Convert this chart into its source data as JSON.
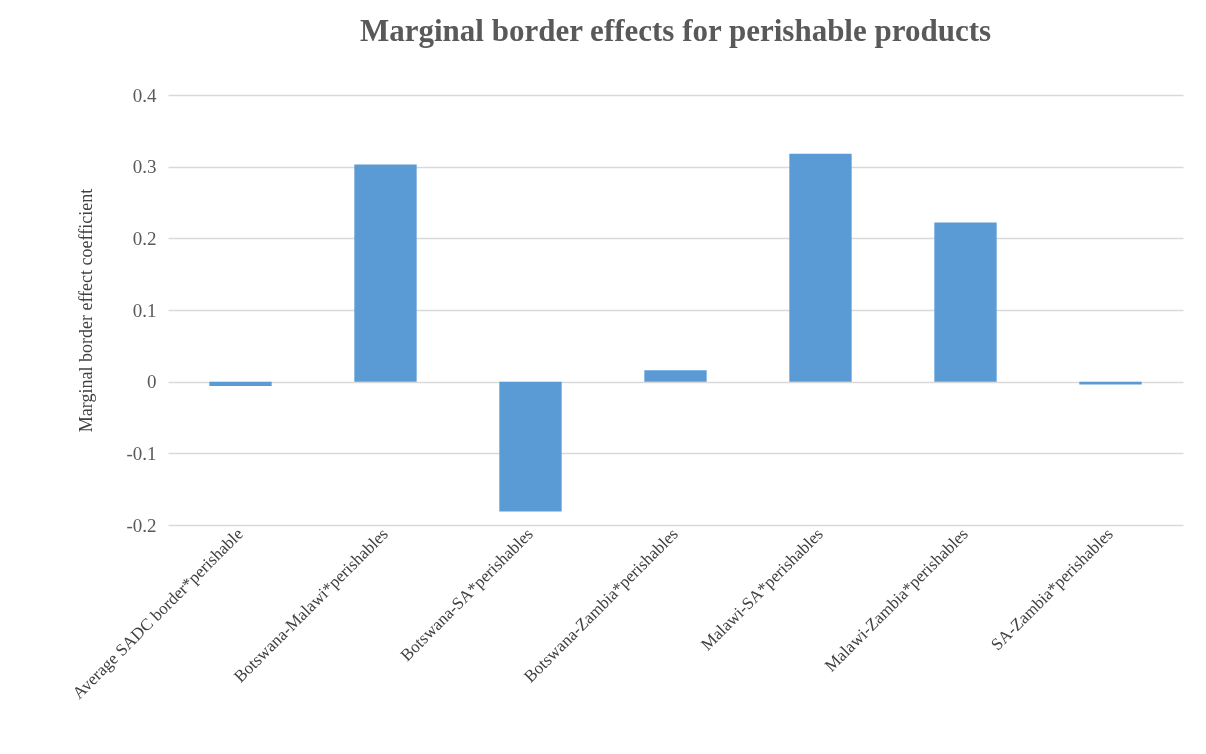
{
  "chart_data": {
    "type": "bar",
    "title": "Marginal border effects for perishable products",
    "ylabel": "Marginal border effect coefficient",
    "categories": [
      "Average SADC border*perishable",
      "Botswana-Malawi*perishables",
      "Botswana-SA*perishables",
      "Botswana-Zambia*perishables",
      "Malawi-SA*perishables",
      "Malawi-Zambia*perishables",
      "SA-Zambia*perishables"
    ],
    "values": [
      -0.006,
      0.303,
      -0.181,
      0.016,
      0.318,
      0.222,
      -0.004
    ],
    "color": "#5b9bd5",
    "ylim": [
      -0.2,
      0.4
    ],
    "yticks": [
      -0.2,
      -0.1,
      0,
      0.1,
      0.2,
      0.3,
      0.4
    ],
    "grid": "y"
  }
}
